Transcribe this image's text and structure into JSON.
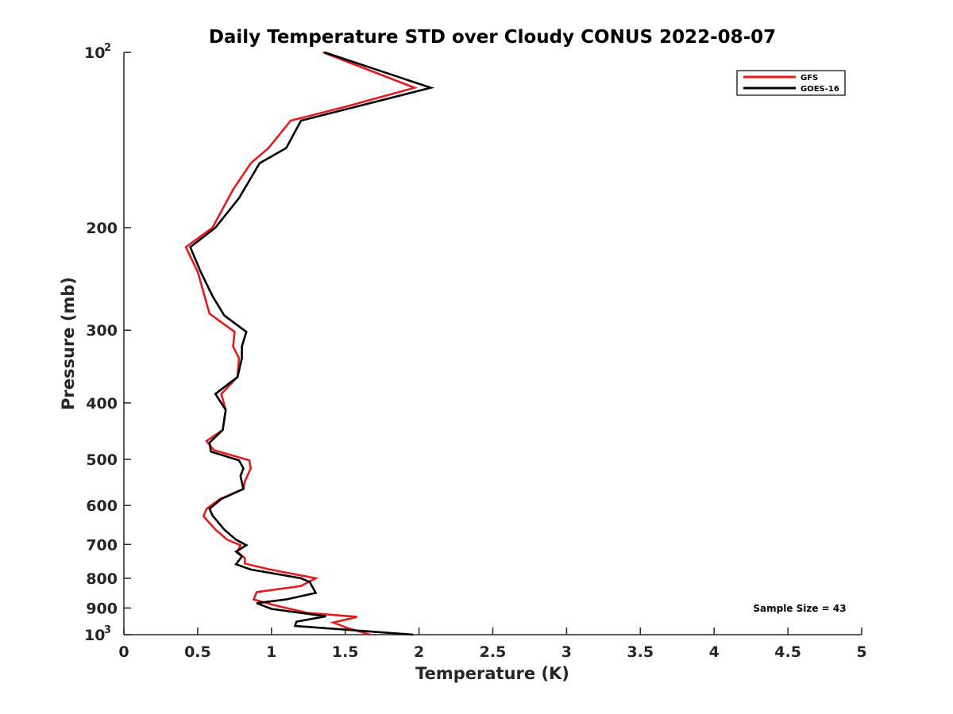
{
  "chart_data": {
    "type": "line",
    "title": "Daily Temperature STD over Cloudy CONUS 2022-08-07",
    "xlabel": "Temperature (K)",
    "ylabel": "Pressure (mb)",
    "xlim": [
      0,
      5
    ],
    "ylim": [
      100,
      1000
    ],
    "y_scale": "log",
    "y_reversed": true,
    "grid": false,
    "legend_position": "top-right",
    "x_ticks": [
      "0",
      "0.5",
      "1",
      "1.5",
      "2",
      "2.5",
      "3",
      "3.5",
      "4",
      "4.5",
      "5"
    ],
    "x_tick_values": [
      0,
      0.5,
      1,
      1.5,
      2,
      2.5,
      3,
      3.5,
      4,
      4.5,
      5
    ],
    "y_ticks": [
      {
        "value": 100,
        "label": "10",
        "sup": "2"
      },
      {
        "value": 200,
        "label": "200",
        "sup": ""
      },
      {
        "value": 300,
        "label": "300",
        "sup": ""
      },
      {
        "value": 400,
        "label": "400",
        "sup": ""
      },
      {
        "value": 500,
        "label": "500",
        "sup": ""
      },
      {
        "value": 600,
        "label": "600",
        "sup": ""
      },
      {
        "value": 700,
        "label": "700",
        "sup": ""
      },
      {
        "value": 800,
        "label": "800",
        "sup": ""
      },
      {
        "value": 900,
        "label": "900",
        "sup": ""
      },
      {
        "value": 1000,
        "label": "10",
        "sup": "3"
      }
    ],
    "annotation": "Sample Size = 43",
    "series": [
      {
        "name": "GFS",
        "color": "#e41a1c",
        "points": [
          [
            1.35,
            100
          ],
          [
            1.97,
            115
          ],
          [
            1.5,
            124
          ],
          [
            1.13,
            131
          ],
          [
            0.98,
            146
          ],
          [
            0.86,
            155
          ],
          [
            0.74,
            172
          ],
          [
            0.6,
            200
          ],
          [
            0.42,
            216
          ],
          [
            0.5,
            238
          ],
          [
            0.58,
            281
          ],
          [
            0.75,
            302
          ],
          [
            0.74,
            320
          ],
          [
            0.78,
            335
          ],
          [
            0.77,
            361
          ],
          [
            0.66,
            386
          ],
          [
            0.69,
            411
          ],
          [
            0.67,
            445
          ],
          [
            0.56,
            465
          ],
          [
            0.61,
            482
          ],
          [
            0.85,
            502
          ],
          [
            0.86,
            518
          ],
          [
            0.82,
            545
          ],
          [
            0.81,
            562
          ],
          [
            0.65,
            585
          ],
          [
            0.56,
            608
          ],
          [
            0.54,
            626
          ],
          [
            0.62,
            660
          ],
          [
            0.7,
            687
          ],
          [
            0.79,
            702
          ],
          [
            0.77,
            721
          ],
          [
            0.82,
            739
          ],
          [
            0.82,
            755
          ],
          [
            0.98,
            772
          ],
          [
            1.3,
            800
          ],
          [
            1.2,
            825
          ],
          [
            1.05,
            835
          ],
          [
            0.9,
            845
          ],
          [
            0.88,
            870
          ],
          [
            1.02,
            890
          ],
          [
            1.24,
            917
          ],
          [
            1.58,
            932
          ],
          [
            1.42,
            953
          ],
          [
            1.52,
            975
          ],
          [
            1.67,
            1000
          ]
        ]
      },
      {
        "name": "GOES-16",
        "color": "#000000",
        "points": [
          [
            1.36,
            100
          ],
          [
            2.08,
            115
          ],
          [
            1.2,
            131
          ],
          [
            1.1,
            146
          ],
          [
            0.92,
            155
          ],
          [
            0.78,
            178
          ],
          [
            0.62,
            200
          ],
          [
            0.45,
            216
          ],
          [
            0.52,
            238
          ],
          [
            0.6,
            262
          ],
          [
            0.68,
            283
          ],
          [
            0.83,
            302
          ],
          [
            0.8,
            320
          ],
          [
            0.8,
            335
          ],
          [
            0.77,
            361
          ],
          [
            0.62,
            386
          ],
          [
            0.69,
            411
          ],
          [
            0.67,
            445
          ],
          [
            0.58,
            468
          ],
          [
            0.59,
            485
          ],
          [
            0.78,
            502
          ],
          [
            0.81,
            518
          ],
          [
            0.79,
            534
          ],
          [
            0.81,
            562
          ],
          [
            0.66,
            585
          ],
          [
            0.58,
            608
          ],
          [
            0.6,
            624
          ],
          [
            0.68,
            660
          ],
          [
            0.76,
            687
          ],
          [
            0.83,
            702
          ],
          [
            0.76,
            720
          ],
          [
            0.8,
            734
          ],
          [
            0.76,
            757
          ],
          [
            0.86,
            773
          ],
          [
            1.2,
            800
          ],
          [
            1.26,
            812
          ],
          [
            1.3,
            848
          ],
          [
            1.1,
            870
          ],
          [
            0.9,
            883
          ],
          [
            1.0,
            903
          ],
          [
            1.37,
            930
          ],
          [
            1.17,
            950
          ],
          [
            1.16,
            966
          ],
          [
            1.96,
            1000
          ]
        ]
      }
    ]
  }
}
